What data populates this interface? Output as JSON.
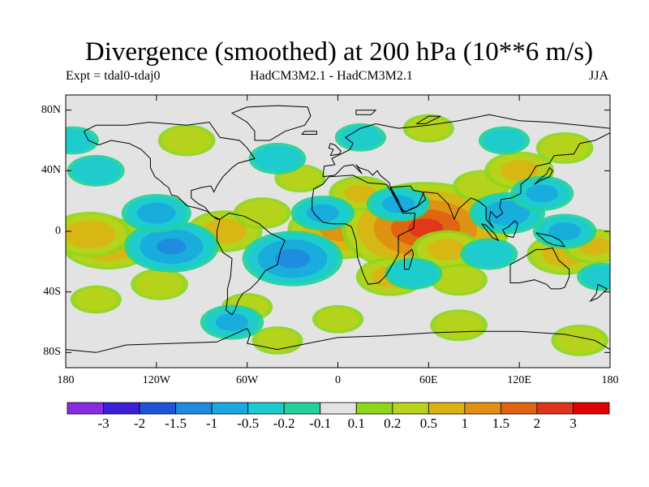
{
  "title": "Divergence (smoothed) at 200 hPa (10**6 m/s)",
  "subtitle_left": "Expt = tdal0-tdaj0",
  "subtitle_center": "HadCM3M2.1 - HadCM3M2.1",
  "subtitle_right": "JJA",
  "lat_ticks": [
    {
      "label": "80N",
      "value": 80
    },
    {
      "label": "40N",
      "value": 40
    },
    {
      "label": "0",
      "value": 0
    },
    {
      "label": "40S",
      "value": -40
    },
    {
      "label": "80S",
      "value": -80
    }
  ],
  "lon_ticks": [
    {
      "label": "180",
      "value": -180
    },
    {
      "label": "120W",
      "value": -120
    },
    {
      "label": "60W",
      "value": -60
    },
    {
      "label": "0",
      "value": 0
    },
    {
      "label": "60E",
      "value": 60
    },
    {
      "label": "120E",
      "value": 120
    },
    {
      "label": "180",
      "value": 180
    }
  ],
  "colorbar": {
    "colors": [
      "#8a2be2",
      "#3c1fd8",
      "#1a55db",
      "#1e8ae0",
      "#19aadf",
      "#1ccbd1",
      "#22d29a",
      "#e3e3e3",
      "#8ed61c",
      "#b9d21a",
      "#d9b412",
      "#e08e14",
      "#e0620f",
      "#e0341a",
      "#e00000"
    ],
    "labels": [
      "-3",
      "-2",
      "-1.5",
      "-1",
      "-0.5",
      "-0.2",
      "-0.1",
      "0.1",
      "0.2",
      "0.5",
      "1",
      "1.5",
      "2",
      "3"
    ]
  },
  "map_data": {
    "type": "contour-fill",
    "lon_range": [
      -180,
      180
    ],
    "lat_range": [
      -90,
      90
    ],
    "background_color": "#e3e3e3",
    "coast_color": "#000000",
    "anomalies": [
      {
        "lon": 2,
        "lat": 1,
        "value": 1.2
      },
      {
        "lon": 58,
        "lat": 2,
        "value": 2.2
      },
      {
        "lon": 72,
        "lat": -12,
        "value": 0.6
      },
      {
        "lon": -152,
        "lat": -8,
        "value": 1.0
      },
      {
        "lon": -164,
        "lat": -2,
        "value": 0.8
      },
      {
        "lon": -75,
        "lat": 0,
        "value": 0.7
      },
      {
        "lon": -50,
        "lat": 12,
        "value": 0.4
      },
      {
        "lon": -25,
        "lat": 35,
        "value": 0.3
      },
      {
        "lon": 15,
        "lat": 25,
        "value": 0.5
      },
      {
        "lon": 35,
        "lat": -30,
        "value": 0.6
      },
      {
        "lon": 80,
        "lat": -32,
        "value": 0.4
      },
      {
        "lon": 95,
        "lat": 30,
        "value": 0.4
      },
      {
        "lon": 120,
        "lat": 40,
        "value": 0.6
      },
      {
        "lon": 150,
        "lat": -15,
        "value": 0.7
      },
      {
        "lon": 170,
        "lat": -10,
        "value": 0.5
      },
      {
        "lon": 150,
        "lat": 55,
        "value": 0.4
      },
      {
        "lon": 60,
        "lat": 68,
        "value": 0.3
      },
      {
        "lon": -100,
        "lat": 60,
        "value": 0.4
      },
      {
        "lon": -118,
        "lat": -35,
        "value": 0.4
      },
      {
        "lon": -160,
        "lat": -45,
        "value": 0.3
      },
      {
        "lon": -60,
        "lat": -50,
        "value": 0.3
      },
      {
        "lon": 0,
        "lat": -58,
        "value": 0.3
      },
      {
        "lon": 80,
        "lat": -62,
        "value": 0.4
      },
      {
        "lon": 160,
        "lat": -72,
        "value": 0.4
      },
      {
        "lon": -40,
        "lat": -72,
        "value": 0.3
      },
      {
        "lon": -110,
        "lat": -10,
        "value": -1.0
      },
      {
        "lon": -120,
        "lat": 12,
        "value": -0.6
      },
      {
        "lon": -30,
        "lat": -18,
        "value": -1.1
      },
      {
        "lon": -10,
        "lat": 12,
        "value": -0.5
      },
      {
        "lon": 40,
        "lat": 18,
        "value": -0.5
      },
      {
        "lon": 50,
        "lat": -28,
        "value": -0.4
      },
      {
        "lon": 112,
        "lat": 12,
        "value": -0.7
      },
      {
        "lon": 135,
        "lat": 25,
        "value": -0.5
      },
      {
        "lon": 100,
        "lat": -15,
        "value": -0.4
      },
      {
        "lon": 150,
        "lat": 0,
        "value": -0.5
      },
      {
        "lon": -160,
        "lat": 40,
        "value": -0.4
      },
      {
        "lon": -40,
        "lat": 48,
        "value": -0.4
      },
      {
        "lon": -70,
        "lat": -60,
        "value": -0.5
      },
      {
        "lon": 15,
        "lat": 62,
        "value": -0.3
      },
      {
        "lon": 175,
        "lat": -30,
        "value": -0.3
      },
      {
        "lon": -175,
        "lat": 60,
        "value": -0.3
      },
      {
        "lon": 110,
        "lat": 60,
        "value": -0.3
      }
    ]
  }
}
